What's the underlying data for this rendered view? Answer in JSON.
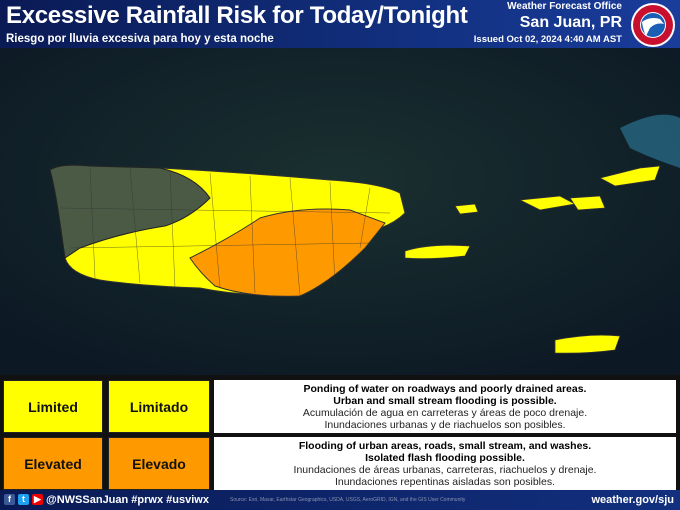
{
  "header": {
    "title": "Excessive Rainfall Risk for Today/Tonight",
    "subtitle": "Riesgo por lluvia excesiva para hoy y esta noche",
    "office": "Weather Forecast Office",
    "city": "San Juan, PR",
    "issued": "Issued Oct 02, 2024 4:40 AM AST",
    "logo_text": "NATIONAL WEATHER SERVICE"
  },
  "colors": {
    "limited": "#ffff00",
    "elevated": "#ff9900",
    "ocean": "#0f1e28",
    "none": "#3a4a3a"
  },
  "legend": [
    {
      "level_en": "Limited",
      "level_es": "Limitado",
      "color": "#ffff00",
      "line1": "Ponding of water on roadways and poorly drained areas.",
      "line2": "Urban and small stream flooding is possible.",
      "line3": "Acumulación de agua en carreteras y áreas de poco drenaje.",
      "line4": "Inundaciones urbanas y de riachuelos son posibles."
    },
    {
      "level_en": "Elevated",
      "level_es": "Elevado",
      "color": "#ff9900",
      "line1": "Flooding of urban areas, roads, small stream, and washes.",
      "line2": "Isolated flash flooding possible.",
      "line3": "Inundaciones de áreas urbanas, carreteras, riachuelos y drenaje.",
      "line4": "Inundaciones repentinas aisladas son posibles."
    }
  ],
  "footer": {
    "social": "@NWSSanJuan #prwx #usviwx",
    "site": "weather.gov/sju",
    "icons": [
      "facebook-icon",
      "twitter-icon",
      "youtube-icon"
    ]
  },
  "map": {
    "credit": "Source: Esri, Maxar, Earthstar Geographics, USDA, USGS, AeroGRID, IGN, and the GIS User Community"
  }
}
